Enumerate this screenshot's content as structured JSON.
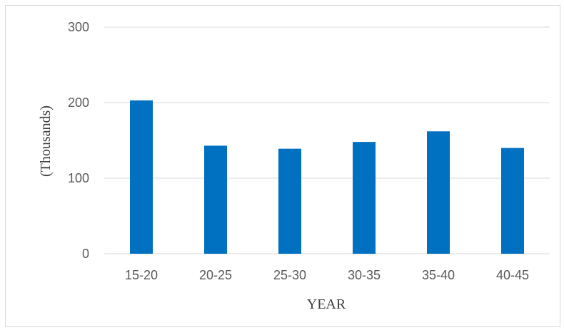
{
  "chart_data": {
    "type": "bar",
    "categories": [
      "15-20",
      "20-25",
      "25-30",
      "30-35",
      "35-40",
      "40-45"
    ],
    "values": [
      203,
      143,
      139,
      148,
      162,
      140
    ],
    "xlabel": "YEAR",
    "ylabel": "(Thousands)",
    "ylim": [
      0,
      300
    ],
    "yticks": [
      "0",
      "100",
      "200",
      "300"
    ],
    "grid": true,
    "legend": "none",
    "bar_color": "#0070c0",
    "grid_color": "#d9d9d9"
  }
}
